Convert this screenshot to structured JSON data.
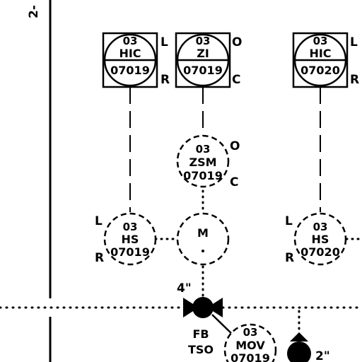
{
  "sheet_marker": "2-",
  "controllers": [
    {
      "id": "hic-07019",
      "top": "03",
      "func": "HIC",
      "tag": "07019",
      "upper_side": "L",
      "lower_side": "R"
    },
    {
      "id": "zi-07019",
      "top": "03",
      "func": "ZI",
      "tag": "07019",
      "upper_side": "O",
      "lower_side": "C"
    },
    {
      "id": "hic-07020",
      "top": "03",
      "func": "HIC",
      "tag": "07020",
      "upper_side": "L",
      "lower_side": "R"
    }
  ],
  "field_instruments": [
    {
      "id": "zsm-07019",
      "top": "03",
      "func": "ZSM",
      "tag": "07019",
      "upper_side": "O",
      "lower_side": "C"
    },
    {
      "id": "hs-07019",
      "top": "03",
      "func": "HS",
      "tag": "07019",
      "upper_side": "L",
      "lower_side": "R"
    },
    {
      "id": "hs-07020",
      "top": "03",
      "func": "HS",
      "tag": "07020",
      "upper_side": "L",
      "lower_side": "R"
    },
    {
      "id": "mov-07019",
      "top": "03",
      "func": "MOV",
      "tag": "07019"
    }
  ],
  "motor": {
    "label": "M"
  },
  "valve": {
    "size": "4\"",
    "fail_line1": "FB",
    "fail_line2": "TSO"
  },
  "branch": {
    "size": "2\""
  }
}
